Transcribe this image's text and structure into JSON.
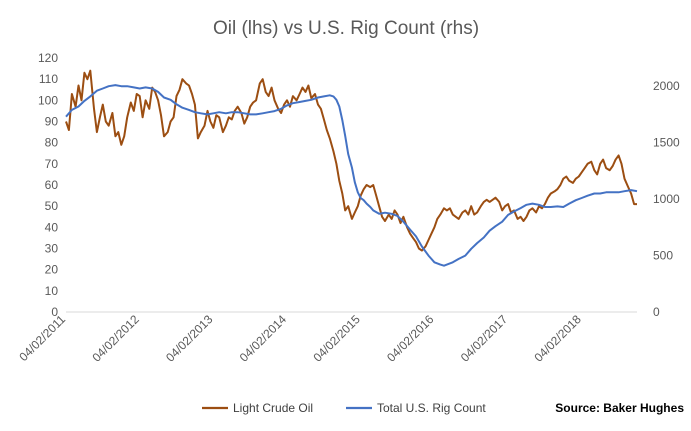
{
  "chart_data": {
    "type": "line",
    "title": "Oil (lhs) vs U.S. Rig Count (rhs)",
    "source": "Source: Baker Hughes",
    "x_tick_labels": [
      "04/02/2011",
      "04/02/2012",
      "04/02/2013",
      "04/02/2014",
      "04/02/2015",
      "04/02/2016",
      "04/02/2017",
      "04/02/2018"
    ],
    "x_range": [
      2011.25,
      2019.0
    ],
    "y_left": {
      "range": [
        0,
        120
      ],
      "ticks": [
        0,
        10,
        20,
        30,
        40,
        50,
        60,
        70,
        80,
        90,
        100,
        110,
        120
      ]
    },
    "y_right": {
      "range": [
        0,
        2250
      ],
      "ticks": [
        0,
        500,
        1000,
        1500,
        2000
      ]
    },
    "grid": false,
    "legend_position": "bottom",
    "series": [
      {
        "name": "Light Crude Oil",
        "axis": "left",
        "color": "#9C4E12",
        "points": [
          [
            2011.25,
            90
          ],
          [
            2011.29,
            86
          ],
          [
            2011.33,
            103
          ],
          [
            2011.38,
            97
          ],
          [
            2011.42,
            107
          ],
          [
            2011.46,
            100
          ],
          [
            2011.5,
            113
          ],
          [
            2011.54,
            110
          ],
          [
            2011.58,
            114
          ],
          [
            2011.63,
            96
          ],
          [
            2011.67,
            85
          ],
          [
            2011.71,
            92
          ],
          [
            2011.75,
            98
          ],
          [
            2011.79,
            90
          ],
          [
            2011.83,
            88
          ],
          [
            2011.88,
            94
          ],
          [
            2011.92,
            83
          ],
          [
            2011.96,
            85
          ],
          [
            2012.0,
            79
          ],
          [
            2012.04,
            83
          ],
          [
            2012.08,
            92
          ],
          [
            2012.13,
            99
          ],
          [
            2012.17,
            95
          ],
          [
            2012.21,
            103
          ],
          [
            2012.25,
            102
          ],
          [
            2012.29,
            92
          ],
          [
            2012.33,
            100
          ],
          [
            2012.38,
            96
          ],
          [
            2012.42,
            106
          ],
          [
            2012.46,
            104
          ],
          [
            2012.5,
            100
          ],
          [
            2012.54,
            93
          ],
          [
            2012.58,
            83
          ],
          [
            2012.63,
            85
          ],
          [
            2012.67,
            90
          ],
          [
            2012.71,
            92
          ],
          [
            2012.75,
            102
          ],
          [
            2012.79,
            105
          ],
          [
            2012.83,
            110
          ],
          [
            2012.88,
            108
          ],
          [
            2012.92,
            107
          ],
          [
            2012.96,
            103
          ],
          [
            2013.0,
            98
          ],
          [
            2013.04,
            82
          ],
          [
            2013.08,
            85
          ],
          [
            2013.13,
            88
          ],
          [
            2013.17,
            95
          ],
          [
            2013.21,
            90
          ],
          [
            2013.25,
            87
          ],
          [
            2013.29,
            93
          ],
          [
            2013.33,
            92
          ],
          [
            2013.38,
            85
          ],
          [
            2013.42,
            88
          ],
          [
            2013.46,
            92
          ],
          [
            2013.5,
            91
          ],
          [
            2013.54,
            95
          ],
          [
            2013.58,
            97
          ],
          [
            2013.63,
            94
          ],
          [
            2013.67,
            89
          ],
          [
            2013.71,
            92
          ],
          [
            2013.75,
            97
          ],
          [
            2013.79,
            99
          ],
          [
            2013.83,
            100
          ],
          [
            2013.88,
            108
          ],
          [
            2013.92,
            110
          ],
          [
            2013.96,
            104
          ],
          [
            2014.0,
            102
          ],
          [
            2014.04,
            106
          ],
          [
            2014.08,
            100
          ],
          [
            2014.13,
            96
          ],
          [
            2014.17,
            94
          ],
          [
            2014.21,
            98
          ],
          [
            2014.25,
            100
          ],
          [
            2014.29,
            97
          ],
          [
            2014.33,
            102
          ],
          [
            2014.38,
            100
          ],
          [
            2014.42,
            103
          ],
          [
            2014.46,
            106
          ],
          [
            2014.5,
            104
          ],
          [
            2014.54,
            107
          ],
          [
            2014.58,
            101
          ],
          [
            2014.63,
            103
          ],
          [
            2014.67,
            98
          ],
          [
            2014.71,
            96
          ],
          [
            2014.75,
            91
          ],
          [
            2014.79,
            86
          ],
          [
            2014.83,
            82
          ],
          [
            2014.88,
            76
          ],
          [
            2014.92,
            70
          ],
          [
            2014.96,
            62
          ],
          [
            2015.0,
            56
          ],
          [
            2015.04,
            48
          ],
          [
            2015.08,
            50
          ],
          [
            2015.13,
            44
          ],
          [
            2015.17,
            47
          ],
          [
            2015.21,
            50
          ],
          [
            2015.25,
            55
          ],
          [
            2015.29,
            58
          ],
          [
            2015.33,
            60
          ],
          [
            2015.38,
            59
          ],
          [
            2015.42,
            60
          ],
          [
            2015.46,
            55
          ],
          [
            2015.5,
            50
          ],
          [
            2015.54,
            45
          ],
          [
            2015.58,
            43
          ],
          [
            2015.63,
            46
          ],
          [
            2015.67,
            44
          ],
          [
            2015.71,
            48
          ],
          [
            2015.75,
            46
          ],
          [
            2015.79,
            42
          ],
          [
            2015.83,
            45
          ],
          [
            2015.88,
            40
          ],
          [
            2015.92,
            37
          ],
          [
            2015.96,
            35
          ],
          [
            2016.0,
            33
          ],
          [
            2016.04,
            30
          ],
          [
            2016.08,
            29
          ],
          [
            2016.13,
            31
          ],
          [
            2016.17,
            34
          ],
          [
            2016.21,
            37
          ],
          [
            2016.25,
            40
          ],
          [
            2016.29,
            44
          ],
          [
            2016.33,
            46
          ],
          [
            2016.38,
            49
          ],
          [
            2016.42,
            48
          ],
          [
            2016.46,
            49
          ],
          [
            2016.5,
            46
          ],
          [
            2016.54,
            45
          ],
          [
            2016.58,
            44
          ],
          [
            2016.63,
            47
          ],
          [
            2016.67,
            48
          ],
          [
            2016.71,
            46
          ],
          [
            2016.75,
            50
          ],
          [
            2016.79,
            46
          ],
          [
            2016.83,
            47
          ],
          [
            2016.88,
            50
          ],
          [
            2016.92,
            52
          ],
          [
            2016.96,
            53
          ],
          [
            2017.0,
            52
          ],
          [
            2017.04,
            53
          ],
          [
            2017.08,
            54
          ],
          [
            2017.13,
            52
          ],
          [
            2017.17,
            48
          ],
          [
            2017.21,
            50
          ],
          [
            2017.25,
            51
          ],
          [
            2017.29,
            47
          ],
          [
            2017.33,
            48
          ],
          [
            2017.38,
            44
          ],
          [
            2017.42,
            45
          ],
          [
            2017.46,
            43
          ],
          [
            2017.5,
            45
          ],
          [
            2017.54,
            48
          ],
          [
            2017.58,
            49
          ],
          [
            2017.63,
            47
          ],
          [
            2017.67,
            50
          ],
          [
            2017.71,
            49
          ],
          [
            2017.75,
            51
          ],
          [
            2017.79,
            54
          ],
          [
            2017.83,
            56
          ],
          [
            2017.88,
            57
          ],
          [
            2017.92,
            58
          ],
          [
            2017.96,
            60
          ],
          [
            2018.0,
            63
          ],
          [
            2018.04,
            64
          ],
          [
            2018.08,
            62
          ],
          [
            2018.13,
            61
          ],
          [
            2018.17,
            63
          ],
          [
            2018.21,
            64
          ],
          [
            2018.25,
            66
          ],
          [
            2018.29,
            68
          ],
          [
            2018.33,
            70
          ],
          [
            2018.38,
            71
          ],
          [
            2018.42,
            67
          ],
          [
            2018.46,
            65
          ],
          [
            2018.5,
            70
          ],
          [
            2018.54,
            72
          ],
          [
            2018.58,
            68
          ],
          [
            2018.63,
            67
          ],
          [
            2018.67,
            69
          ],
          [
            2018.71,
            72
          ],
          [
            2018.75,
            74
          ],
          [
            2018.79,
            70
          ],
          [
            2018.83,
            63
          ],
          [
            2018.88,
            59
          ],
          [
            2018.92,
            56
          ],
          [
            2018.96,
            51
          ],
          [
            2019.0,
            51
          ]
        ]
      },
      {
        "name": "Total U.S. Rig Count",
        "axis": "right",
        "color": "#4472C4",
        "points": [
          [
            2011.25,
            1730
          ],
          [
            2011.33,
            1790
          ],
          [
            2011.42,
            1820
          ],
          [
            2011.5,
            1870
          ],
          [
            2011.58,
            1910
          ],
          [
            2011.67,
            1960
          ],
          [
            2011.75,
            1980
          ],
          [
            2011.83,
            2000
          ],
          [
            2011.92,
            2010
          ],
          [
            2012.0,
            2000
          ],
          [
            2012.08,
            2000
          ],
          [
            2012.17,
            1990
          ],
          [
            2012.25,
            1980
          ],
          [
            2012.33,
            1990
          ],
          [
            2012.42,
            1980
          ],
          [
            2012.5,
            1950
          ],
          [
            2012.58,
            1900
          ],
          [
            2012.67,
            1880
          ],
          [
            2012.75,
            1840
          ],
          [
            2012.83,
            1810
          ],
          [
            2012.92,
            1790
          ],
          [
            2013.0,
            1770
          ],
          [
            2013.08,
            1760
          ],
          [
            2013.17,
            1750
          ],
          [
            2013.25,
            1760
          ],
          [
            2013.33,
            1770
          ],
          [
            2013.42,
            1760
          ],
          [
            2013.5,
            1770
          ],
          [
            2013.58,
            1770
          ],
          [
            2013.67,
            1760
          ],
          [
            2013.75,
            1750
          ],
          [
            2013.83,
            1750
          ],
          [
            2013.92,
            1760
          ],
          [
            2014.0,
            1770
          ],
          [
            2014.08,
            1780
          ],
          [
            2014.17,
            1800
          ],
          [
            2014.25,
            1830
          ],
          [
            2014.33,
            1850
          ],
          [
            2014.42,
            1860
          ],
          [
            2014.5,
            1870
          ],
          [
            2014.58,
            1880
          ],
          [
            2014.67,
            1900
          ],
          [
            2014.75,
            1910
          ],
          [
            2014.83,
            1920
          ],
          [
            2014.88,
            1910
          ],
          [
            2014.92,
            1880
          ],
          [
            2014.96,
            1820
          ],
          [
            2015.0,
            1700
          ],
          [
            2015.04,
            1560
          ],
          [
            2015.08,
            1400
          ],
          [
            2015.13,
            1280
          ],
          [
            2015.17,
            1150
          ],
          [
            2015.21,
            1060
          ],
          [
            2015.25,
            1010
          ],
          [
            2015.29,
            990
          ],
          [
            2015.33,
            960
          ],
          [
            2015.38,
            930
          ],
          [
            2015.42,
            900
          ],
          [
            2015.5,
            870
          ],
          [
            2015.58,
            880
          ],
          [
            2015.67,
            870
          ],
          [
            2015.75,
            850
          ],
          [
            2015.83,
            800
          ],
          [
            2015.92,
            730
          ],
          [
            2016.0,
            670
          ],
          [
            2016.08,
            580
          ],
          [
            2016.17,
            500
          ],
          [
            2016.21,
            470
          ],
          [
            2016.25,
            440
          ],
          [
            2016.33,
            420
          ],
          [
            2016.38,
            410
          ],
          [
            2016.42,
            420
          ],
          [
            2016.5,
            440
          ],
          [
            2016.58,
            470
          ],
          [
            2016.67,
            500
          ],
          [
            2016.75,
            560
          ],
          [
            2016.83,
            610
          ],
          [
            2016.92,
            660
          ],
          [
            2017.0,
            720
          ],
          [
            2017.08,
            760
          ],
          [
            2017.17,
            800
          ],
          [
            2017.25,
            860
          ],
          [
            2017.33,
            890
          ],
          [
            2017.42,
            920
          ],
          [
            2017.5,
            950
          ],
          [
            2017.58,
            960
          ],
          [
            2017.67,
            950
          ],
          [
            2017.75,
            930
          ],
          [
            2017.83,
            930
          ],
          [
            2017.92,
            935
          ],
          [
            2018.0,
            930
          ],
          [
            2018.08,
            960
          ],
          [
            2018.17,
            990
          ],
          [
            2018.25,
            1010
          ],
          [
            2018.33,
            1030
          ],
          [
            2018.42,
            1050
          ],
          [
            2018.5,
            1050
          ],
          [
            2018.58,
            1060
          ],
          [
            2018.67,
            1060
          ],
          [
            2018.75,
            1060
          ],
          [
            2018.83,
            1070
          ],
          [
            2018.92,
            1080
          ],
          [
            2019.0,
            1070
          ]
        ]
      }
    ]
  }
}
